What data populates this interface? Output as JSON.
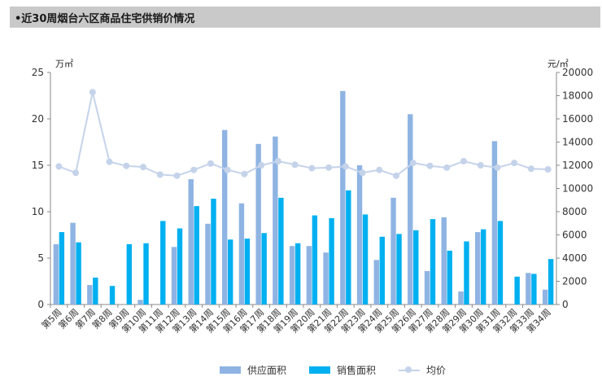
{
  "title": "•近30周烟台六区商品住宅供销价情况",
  "chart_data": {
    "type": "bar",
    "categories": [
      "第5周",
      "第6周",
      "第7周",
      "第8周",
      "第9周",
      "第10周",
      "第11周",
      "第12周",
      "第13周",
      "第14周",
      "第15周",
      "第16周",
      "第17周",
      "第18周",
      "第19周",
      "第20周",
      "第21周",
      "第22周",
      "第23周",
      "第24周",
      "第25周",
      "第26周",
      "第27周",
      "第28周",
      "第29周",
      "第30周",
      "第31周",
      "第32周",
      "第33周",
      "第34周"
    ],
    "series": [
      {
        "name": "供应面积",
        "axis": "left",
        "color": "#8fb4e3",
        "values": [
          6.5,
          8.8,
          2.1,
          0,
          0,
          0.5,
          0,
          6.2,
          13.5,
          8.7,
          18.8,
          10.9,
          17.3,
          18.1,
          6.3,
          6.3,
          5.6,
          23.0,
          15.0,
          4.8,
          11.5,
          20.5,
          3.6,
          9.4,
          1.4,
          7.8,
          17.6,
          0,
          3.4,
          1.6
        ]
      },
      {
        "name": "销售面积",
        "axis": "left",
        "color": "#00b0f0",
        "values": [
          7.8,
          6.7,
          2.9,
          2.0,
          6.5,
          6.6,
          9.0,
          8.2,
          10.6,
          11.4,
          7.0,
          7.1,
          7.7,
          11.5,
          6.6,
          9.6,
          9.3,
          12.3,
          9.7,
          7.3,
          7.6,
          8.0,
          9.2,
          5.8,
          6.8,
          8.1,
          9.0,
          3.0,
          3.3,
          4.9
        ]
      },
      {
        "name": "均价",
        "axis": "right",
        "color": "#c5d3ea",
        "values": [
          11900,
          11350,
          18300,
          12300,
          11950,
          11850,
          11200,
          11100,
          11600,
          12150,
          11600,
          11250,
          12000,
          12350,
          12050,
          11750,
          11800,
          11900,
          11350,
          11600,
          11100,
          12200,
          11950,
          11800,
          12350,
          12000,
          11800,
          12200,
          11700,
          11650
        ]
      }
    ],
    "left_axis": {
      "unit": "万㎡",
      "min": 0,
      "max": 25,
      "ticks": [
        "0",
        "5",
        "10",
        "15",
        "20",
        "25"
      ]
    },
    "right_axis": {
      "unit": "元/㎡",
      "min": 0,
      "max": 20000,
      "ticks": [
        "0",
        "2000",
        "4000",
        "6000",
        "8000",
        "10000",
        "12000",
        "14000",
        "16000",
        "18000",
        "20000"
      ]
    },
    "grid": false,
    "legend_position": "bottom"
  },
  "legend": [
    {
      "label": "供应面积",
      "kind": "bar",
      "color": "#8fb4e3"
    },
    {
      "label": "销售面积",
      "kind": "bar",
      "color": "#00b0f0"
    },
    {
      "label": "均价",
      "kind": "line",
      "color": "#c5d3ea"
    }
  ]
}
